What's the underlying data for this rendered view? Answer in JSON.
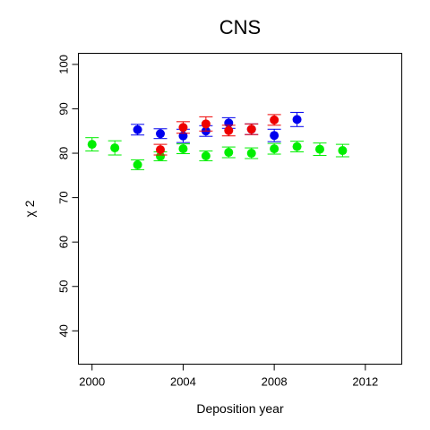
{
  "chart_data": {
    "type": "scatter",
    "title": "CNS",
    "xlabel": "Deposition year",
    "ylabel": "χ 2",
    "xlim": [
      1999.4,
      2013.6
    ],
    "ylim": [
      32.5,
      102.5
    ],
    "xticks": [
      2000,
      2004,
      2008,
      2012
    ],
    "yticks": [
      40,
      50,
      60,
      70,
      80,
      90,
      100
    ],
    "grid": false,
    "legend": "none",
    "series": [
      {
        "color": "#00ee00",
        "points": [
          {
            "x": 2000,
            "y": 82.0,
            "err": 1.5
          },
          {
            "x": 2001,
            "y": 81.2,
            "err": 1.6
          },
          {
            "x": 2002,
            "y": 77.4,
            "err": 1.1
          },
          {
            "x": 2003,
            "y": 79.3,
            "err": 1.0
          },
          {
            "x": 2004,
            "y": 81.0,
            "err": 1.1
          },
          {
            "x": 2005,
            "y": 79.4,
            "err": 1.1
          },
          {
            "x": 2006,
            "y": 80.2,
            "err": 1.2
          },
          {
            "x": 2007,
            "y": 80.0,
            "err": 1.2
          },
          {
            "x": 2008,
            "y": 81.0,
            "err": 1.2
          },
          {
            "x": 2009,
            "y": 81.5,
            "err": 1.2
          },
          {
            "x": 2010,
            "y": 80.9,
            "err": 1.4
          },
          {
            "x": 2011,
            "y": 80.6,
            "err": 1.4
          }
        ]
      },
      {
        "color": "#0000ee",
        "points": [
          {
            "x": 2002,
            "y": 85.3,
            "err": 1.2
          },
          {
            "x": 2003,
            "y": 84.4,
            "err": 1.1
          },
          {
            "x": 2004,
            "y": 83.9,
            "err": 1.5
          },
          {
            "x": 2005,
            "y": 85.0,
            "err": 1.2
          },
          {
            "x": 2006,
            "y": 86.8,
            "err": 1.2
          },
          {
            "x": 2007,
            "y": 85.4,
            "err": 1.2
          },
          {
            "x": 2008,
            "y": 84.0,
            "err": 1.4
          },
          {
            "x": 2009,
            "y": 87.6,
            "err": 1.6
          }
        ]
      },
      {
        "color": "#ee0000",
        "points": [
          {
            "x": 2003,
            "y": 80.8,
            "err": 1.2
          },
          {
            "x": 2004,
            "y": 85.8,
            "err": 1.3
          },
          {
            "x": 2005,
            "y": 86.6,
            "err": 1.6
          },
          {
            "x": 2006,
            "y": 85.1,
            "err": 1.2
          },
          {
            "x": 2007,
            "y": 85.4,
            "err": 1.2
          },
          {
            "x": 2008,
            "y": 87.5,
            "err": 1.2
          }
        ]
      }
    ]
  }
}
